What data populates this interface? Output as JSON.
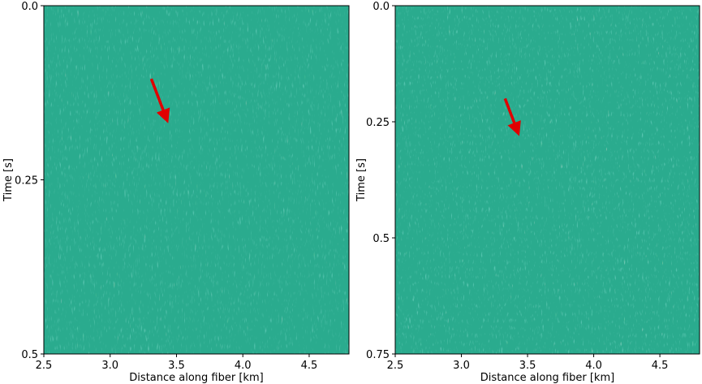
{
  "chart_data": [
    {
      "type": "heatmap",
      "title": "",
      "xlabel": "Distance along fiber [km]",
      "ylabel": "Time [s]",
      "xlim": [
        2.5,
        4.8
      ],
      "ylim": [
        0.5,
        0.0
      ],
      "y_inverted": true,
      "xticks": [
        2.5,
        3.0,
        3.5,
        4.0,
        4.5
      ],
      "xtick_labels": [
        "2.5",
        "3.0",
        "3.5",
        "4.0",
        "4.5"
      ],
      "yticks": [
        0.0,
        0.25,
        0.5
      ],
      "ytick_labels": [
        "0.0",
        "0.25",
        "0.5"
      ],
      "colormap": "viridis",
      "annotation": {
        "type": "arrow",
        "color": "#e00000",
        "from": [
          3.31,
          0.105
        ],
        "to": [
          3.43,
          0.165
        ]
      },
      "grid": false
    },
    {
      "type": "heatmap",
      "title": "",
      "xlabel": "Distance along fiber [km]",
      "ylabel": "Time [s]",
      "xlim": [
        2.5,
        4.8
      ],
      "ylim": [
        0.75,
        0.0
      ],
      "y_inverted": true,
      "xticks": [
        2.5,
        3.0,
        3.5,
        4.0,
        4.5
      ],
      "xtick_labels": [
        "2.5",
        "3.0",
        "3.5",
        "4.0",
        "4.5"
      ],
      "yticks": [
        0.0,
        0.25,
        0.5,
        0.75
      ],
      "ytick_labels": [
        "0.0",
        "0.25",
        "0.5",
        "0.75"
      ],
      "colormap": "viridis",
      "annotation": {
        "type": "arrow",
        "color": "#e00000",
        "from": [
          3.33,
          0.2
        ],
        "to": [
          3.43,
          0.275
        ]
      },
      "grid": false
    }
  ],
  "colors": {
    "field_base": "#2aab8e",
    "field_dark": "#3b6f8e",
    "field_mid": "#35b779",
    "field_bright": "#c2df23",
    "arrow": "#e00000"
  }
}
